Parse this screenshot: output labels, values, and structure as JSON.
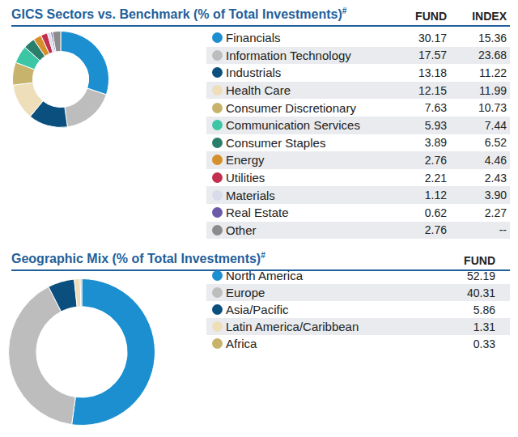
{
  "chart_data": [
    {
      "type": "doughnut",
      "title": "GICS Sectors vs. Benchmark (% of Total Investments)",
      "title_footnote_mark": "#",
      "categories": [
        "Financials",
        "Information Technology",
        "Industrials",
        "Health Care",
        "Consumer Discretionary",
        "Communication Services",
        "Consumer Staples",
        "Energy",
        "Utilities",
        "Materials",
        "Real Estate",
        "Other"
      ],
      "colors": [
        "#1b8fcf",
        "#bdbdbd",
        "#0b4f7e",
        "#eedfba",
        "#c8b36c",
        "#3cc6a6",
        "#2a7e6b",
        "#d58f2b",
        "#c3304f",
        "#d8dcea",
        "#6a5aa8",
        "#8c8c8c"
      ],
      "series": [
        {
          "name": "FUND",
          "values": [
            30.17,
            17.57,
            13.18,
            12.15,
            7.63,
            5.93,
            3.89,
            2.76,
            2.21,
            1.12,
            0.62,
            2.76
          ]
        },
        {
          "name": "INDEX",
          "values": [
            15.36,
            23.68,
            11.22,
            11.99,
            10.73,
            7.44,
            6.52,
            4.46,
            2.43,
            3.9,
            2.27,
            null
          ],
          "value_labels": [
            "15.36",
            "23.68",
            "11.22",
            "11.99",
            "10.73",
            "7.44",
            "6.52",
            "4.46",
            "2.43",
            "3.90",
            "2.27",
            "--"
          ]
        }
      ],
      "legend": "right"
    },
    {
      "type": "doughnut",
      "title": "Geographic Mix (% of Total Investments)",
      "title_footnote_mark": "#",
      "categories": [
        "North America",
        "Europe",
        "Asia/Pacific",
        "Latin America/Caribbean",
        "Africa"
      ],
      "colors": [
        "#1b8fcf",
        "#bdbdbd",
        "#0b4f7e",
        "#eedfba",
        "#c8b36c"
      ],
      "series": [
        {
          "name": "FUND",
          "values": [
            52.19,
            40.31,
            5.86,
            1.31,
            0.33
          ]
        }
      ],
      "legend": "right"
    }
  ]
}
